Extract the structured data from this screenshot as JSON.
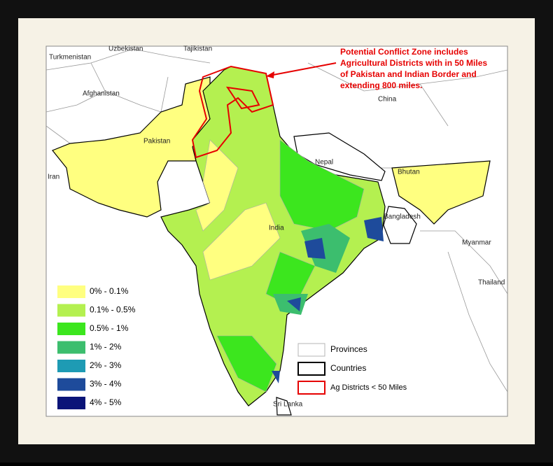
{
  "annotation_lines": [
    "Potential Conflict Zone includes",
    "Agricultural Districts with in 50 Miles",
    "of Pakistan and Indian Border and",
    "extending 800 miles."
  ],
  "place_labels": [
    "Turkmenistan",
    "Uzbekistan",
    "Tajikistan",
    "Afghanistan",
    "China",
    "Pakistan",
    "Nepal",
    "Bhutan",
    "Iran",
    "India",
    "Bangladesh",
    "Myanmar",
    "Thailand",
    "Sri Lanka"
  ],
  "legend": {
    "classes": [
      {
        "label": "0% - 0.1%",
        "color": "#ffff80"
      },
      {
        "label": "0.1% - 0.5%",
        "color": "#b4f050"
      },
      {
        "label": "0.5% - 1%",
        "color": "#3ce61e"
      },
      {
        "label": "1% - 2%",
        "color": "#3cbe6e"
      },
      {
        "label": "2% - 3%",
        "color": "#1e9bb4"
      },
      {
        "label": "3% - 4%",
        "color": "#1e4b9b"
      },
      {
        "label": "4% - 5%",
        "color": "#0a1478"
      }
    ],
    "boundaries": [
      {
        "label": "Provinces",
        "color": "#b4b4b4"
      },
      {
        "label": "Countries",
        "color": "#000000"
      },
      {
        "label": "Ag Districts < 50 Miles",
        "color": "#e60000"
      }
    ]
  }
}
